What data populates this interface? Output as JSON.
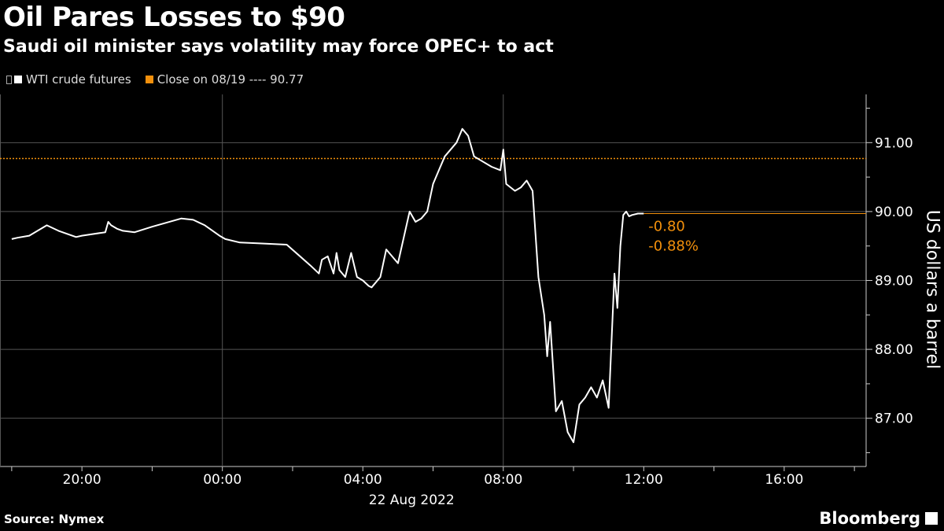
{
  "header": {
    "title": "Oil Pares Losses to $90",
    "subtitle": "Saudi oil minister says volatility may force OPEC+ to act"
  },
  "legend": {
    "series_label": "WTI crude futures",
    "ref_label": "Close on 08/19 ---- 90.77"
  },
  "footer": {
    "source": "Source: Nymex",
    "brand": "Bloomberg"
  },
  "colors": {
    "series": "#ffffff",
    "reference": "#f2900c",
    "grid": "#555555",
    "background": "#000000"
  },
  "chart_data": {
    "type": "line",
    "ylabel": "US dollars a barrel",
    "date_label": "22 Aug 2022",
    "ylim": [
      86.3,
      91.7
    ],
    "xlim": [
      "2022-08-21 17:40",
      "2022-08-22 18:20"
    ],
    "x_ticks": [
      "20:00",
      "00:00",
      "04:00",
      "08:00",
      "12:00",
      "16:00"
    ],
    "y_ticks": [
      "87.00",
      "88.00",
      "89.00",
      "90.00",
      "91.00"
    ],
    "reference_line": {
      "label": "Close on 08/19",
      "value": 90.77
    },
    "last_value": 89.97,
    "annotations": [
      "-0.80",
      "-0.88%"
    ],
    "series": [
      {
        "name": "WTI crude futures",
        "x": [
          "2022-08-21 18:00",
          "2022-08-21 18:10",
          "2022-08-21 18:30",
          "2022-08-21 19:00",
          "2022-08-21 19:20",
          "2022-08-21 19:50",
          "2022-08-21 20:00",
          "2022-08-21 20:40",
          "2022-08-21 20:45",
          "2022-08-21 20:50",
          "2022-08-21 21:00",
          "2022-08-21 21:10",
          "2022-08-21 21:30",
          "2022-08-21 22:00",
          "2022-08-21 22:50",
          "2022-08-21 23:10",
          "2022-08-21 23:30",
          "2022-08-21 23:55",
          "2022-08-22 00:05",
          "2022-08-22 00:30",
          "2022-08-22 01:00",
          "2022-08-22 01:50",
          "2022-08-22 02:30",
          "2022-08-22 02:45",
          "2022-08-22 02:50",
          "2022-08-22 03:00",
          "2022-08-22 03:10",
          "2022-08-22 03:15",
          "2022-08-22 03:20",
          "2022-08-22 03:30",
          "2022-08-22 03:40",
          "2022-08-22 03:50",
          "2022-08-22 04:00",
          "2022-08-22 04:10",
          "2022-08-22 04:15",
          "2022-08-22 04:30",
          "2022-08-22 04:40",
          "2022-08-22 05:00",
          "2022-08-22 05:20",
          "2022-08-22 05:30",
          "2022-08-22 05:40",
          "2022-08-22 05:50",
          "2022-08-22 06:00",
          "2022-08-22 06:10",
          "2022-08-22 06:20",
          "2022-08-22 06:40",
          "2022-08-22 06:50",
          "2022-08-22 07:00",
          "2022-08-22 07:10",
          "2022-08-22 07:20",
          "2022-08-22 07:40",
          "2022-08-22 07:55",
          "2022-08-22 08:00",
          "2022-08-22 08:05",
          "2022-08-22 08:20",
          "2022-08-22 08:30",
          "2022-08-22 08:40",
          "2022-08-22 08:50",
          "2022-08-22 09:00",
          "2022-08-22 09:10",
          "2022-08-22 09:15",
          "2022-08-22 09:20",
          "2022-08-22 09:30",
          "2022-08-22 09:40",
          "2022-08-22 09:50",
          "2022-08-22 10:00",
          "2022-08-22 10:10",
          "2022-08-22 10:20",
          "2022-08-22 10:30",
          "2022-08-22 10:40",
          "2022-08-22 10:50",
          "2022-08-22 11:00",
          "2022-08-22 11:10",
          "2022-08-22 11:15",
          "2022-08-22 11:20",
          "2022-08-22 11:25",
          "2022-08-22 11:30",
          "2022-08-22 11:35",
          "2022-08-22 11:40",
          "2022-08-22 11:50",
          "2022-08-22 12:00"
        ],
        "values": [
          89.6,
          89.62,
          89.65,
          89.8,
          89.72,
          89.63,
          89.65,
          89.7,
          89.85,
          89.8,
          89.75,
          89.72,
          89.7,
          89.78,
          89.9,
          89.88,
          89.8,
          89.65,
          89.6,
          89.55,
          89.54,
          89.52,
          89.22,
          89.1,
          89.3,
          89.35,
          89.1,
          89.4,
          89.15,
          89.05,
          89.4,
          89.05,
          89.0,
          88.92,
          88.9,
          89.05,
          89.45,
          89.25,
          90.0,
          89.85,
          89.9,
          90.0,
          90.4,
          90.6,
          90.8,
          91.0,
          91.2,
          91.1,
          90.8,
          90.75,
          90.65,
          90.6,
          90.9,
          90.4,
          90.3,
          90.35,
          90.45,
          90.3,
          89.05,
          88.5,
          87.9,
          88.4,
          87.1,
          87.25,
          86.8,
          86.65,
          87.2,
          87.3,
          87.45,
          87.3,
          87.55,
          87.15,
          89.1,
          88.6,
          89.5,
          89.95,
          90.0,
          89.93,
          89.95,
          89.97,
          89.97
        ]
      }
    ]
  }
}
